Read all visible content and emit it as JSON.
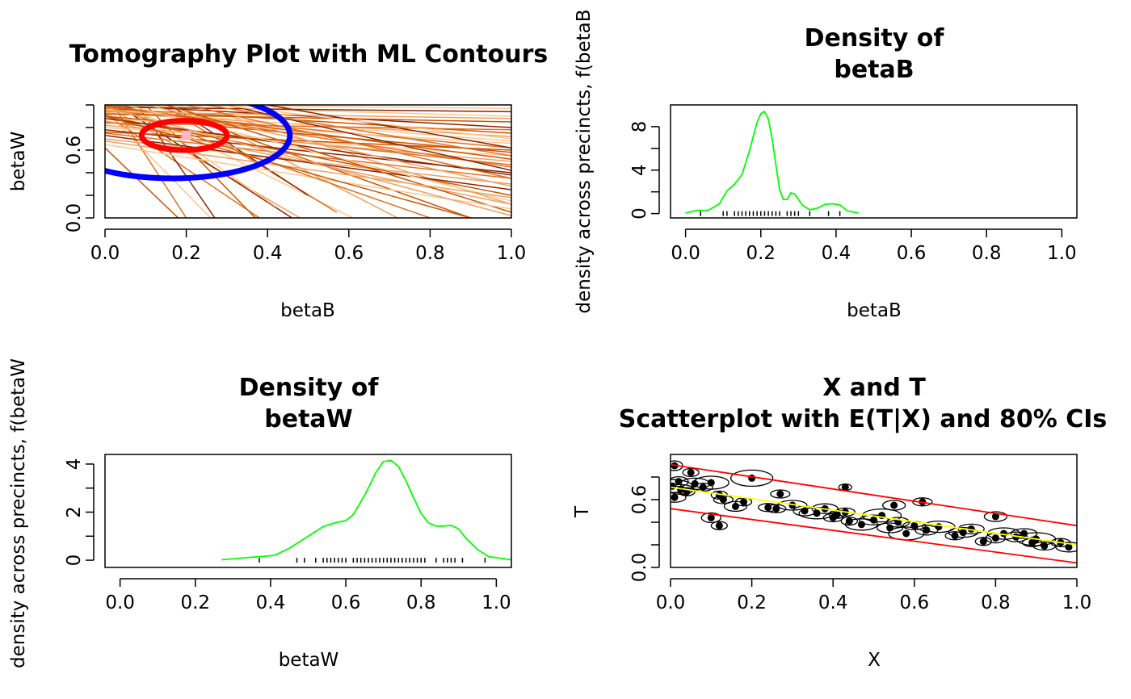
{
  "chart_data": [
    {
      "id": "tomography",
      "type": "line",
      "title": "Tomography Plot with ML Contours",
      "xlabel": "betaB",
      "ylabel": "betaW",
      "xlim": [
        0,
        1
      ],
      "ylim": [
        0,
        1
      ],
      "xticks": [
        "0.0",
        "0.2",
        "0.4",
        "0.6",
        "0.8",
        "1.0"
      ],
      "yticks": [
        "0.0",
        "0.6"
      ],
      "point_estimate": {
        "x": 0.2,
        "y": 0.73,
        "color": "#ffb6c1"
      },
      "contours": [
        {
          "level": "inner",
          "cx": 0.195,
          "cy": 0.73,
          "rx": 0.105,
          "ry": 0.13,
          "color": "#ff0000"
        },
        {
          "level": "outer",
          "cx": 0.165,
          "cy": 0.73,
          "rx": 0.29,
          "ry": 0.38,
          "color": "#0000ff"
        }
      ],
      "line_colors": [
        "#cc5500",
        "#e07020",
        "#f0a060",
        "#fcc890",
        "#8b2500"
      ],
      "lines": [
        [
          0,
          0.62,
          0.18,
          0
        ],
        [
          0,
          0.92,
          0.38,
          0
        ],
        [
          0,
          1,
          0.48,
          0
        ],
        [
          0.05,
          1,
          0.61,
          0
        ],
        [
          0.08,
          1,
          0.27,
          0
        ],
        [
          0.1,
          1,
          0.37,
          0
        ],
        [
          0.14,
          1,
          0.57,
          0.05
        ],
        [
          0.18,
          1,
          0.72,
          0
        ],
        [
          0,
          0.95,
          0.26,
          0
        ],
        [
          0.03,
          1,
          0.46,
          0
        ],
        [
          0.12,
          1,
          0.9,
          0
        ],
        [
          0.02,
          1,
          0.2,
          0
        ],
        [
          0.22,
          1,
          1,
          0.12
        ],
        [
          0.06,
          1,
          0.42,
          0.1
        ],
        [
          0.16,
          1,
          0.5,
          0.2
        ],
        [
          0,
          0.9,
          1,
          0.58
        ],
        [
          0,
          0.95,
          1,
          0.62
        ],
        [
          0,
          0.93,
          1,
          0.72
        ],
        [
          0,
          0.88,
          1,
          0.66
        ],
        [
          0,
          1,
          1,
          0.8
        ],
        [
          0,
          0.97,
          1,
          0.75
        ],
        [
          0,
          0.85,
          1,
          0.47
        ],
        [
          0,
          0.82,
          1,
          0.5
        ],
        [
          0,
          0.8,
          1,
          0.55
        ],
        [
          0,
          0.78,
          1,
          0.4
        ],
        [
          0,
          0.92,
          1,
          0.85
        ],
        [
          0,
          0.75,
          1,
          0.35
        ],
        [
          0,
          0.7,
          1,
          0.3
        ],
        [
          0,
          1,
          1,
          0.9
        ],
        [
          0,
          0.98,
          1,
          0.94
        ],
        [
          0,
          0.9,
          1,
          0.2
        ],
        [
          0,
          1,
          1,
          0.45
        ],
        [
          0,
          0.86,
          1,
          0.12
        ],
        [
          0,
          0.96,
          1,
          0.68
        ],
        [
          0,
          0.73,
          1,
          0.25
        ],
        [
          0,
          0.99,
          1,
          0.52
        ],
        [
          0,
          0.84,
          1,
          0.78
        ],
        [
          0,
          0.94,
          1,
          0.88
        ],
        [
          0,
          1,
          1,
          0.97
        ],
        [
          0,
          0.88,
          1,
          0.38
        ],
        [
          0,
          0.76,
          1,
          0.6
        ],
        [
          0.2,
          1,
          1,
          0.35
        ],
        [
          0.1,
          1,
          1,
          0.28
        ],
        [
          0.05,
          1,
          1,
          0.15
        ],
        [
          0.3,
          1,
          1,
          0.42
        ],
        [
          0.15,
          1,
          1,
          0.05
        ],
        [
          0.25,
          1,
          1,
          0.55
        ],
        [
          0,
          0.68,
          1,
          0.18
        ],
        [
          0,
          0.65,
          1,
          0.08
        ],
        [
          0.4,
          1,
          1,
          0.62
        ],
        [
          0,
          0.9,
          0.9,
          0
        ],
        [
          0,
          1,
          0.8,
          0
        ],
        [
          0,
          0.98,
          1,
          0.02
        ],
        [
          0.28,
          1,
          1,
          0.7
        ]
      ]
    },
    {
      "id": "density-betaB",
      "type": "line",
      "title_lines": [
        "Density of",
        "betaB"
      ],
      "xlabel": "betaB",
      "ylabel": "density across precincts, f(betaB",
      "xlim": [
        -0.04,
        1.04
      ],
      "ylim": [
        -0.4,
        10
      ],
      "xticks": [
        "0.0",
        "0.2",
        "0.4",
        "0.6",
        "0.8",
        "1.0"
      ],
      "yticks": [
        "0",
        "4",
        "8"
      ],
      "color": "#00ff00",
      "x": [
        0,
        0.03,
        0.06,
        0.09,
        0.11,
        0.13,
        0.15,
        0.17,
        0.19,
        0.2,
        0.21,
        0.22,
        0.23,
        0.24,
        0.25,
        0.26,
        0.27,
        0.28,
        0.29,
        0.31,
        0.33,
        0.35,
        0.37,
        0.39,
        0.41,
        0.43,
        0.46
      ],
      "y": [
        0.05,
        0.3,
        0.3,
        0.9,
        2.1,
        2.7,
        3.6,
        5.8,
        8.4,
        9.2,
        9.4,
        8.7,
        6.9,
        4.5,
        2.2,
        1.3,
        1.3,
        1.9,
        1.8,
        0.8,
        0.35,
        0.5,
        0.85,
        0.9,
        0.8,
        0.25,
        0.05
      ],
      "rug": [
        0.04,
        0.1,
        0.11,
        0.13,
        0.14,
        0.15,
        0.16,
        0.17,
        0.18,
        0.19,
        0.2,
        0.21,
        0.22,
        0.23,
        0.24,
        0.25,
        0.27,
        0.28,
        0.29,
        0.3,
        0.33,
        0.38,
        0.41
      ]
    },
    {
      "id": "density-betaW",
      "type": "line",
      "title_lines": [
        "Density of",
        "betaW"
      ],
      "xlabel": "betaW",
      "ylabel": "density across precincts, f(betaW",
      "xlim": [
        -0.04,
        1.04
      ],
      "ylim": [
        -0.3,
        4.4
      ],
      "xticks": [
        "0.0",
        "0.2",
        "0.4",
        "0.6",
        "0.8",
        "1.0"
      ],
      "yticks": [
        "0",
        "2",
        "4"
      ],
      "color": "#00ff00",
      "x": [
        0.27,
        0.33,
        0.37,
        0.41,
        0.45,
        0.5,
        0.54,
        0.57,
        0.6,
        0.62,
        0.65,
        0.68,
        0.7,
        0.72,
        0.74,
        0.76,
        0.78,
        0.8,
        0.82,
        0.84,
        0.86,
        0.88,
        0.9,
        0.92,
        0.95,
        0.98,
        1.04
      ],
      "y": [
        0.02,
        0.1,
        0.15,
        0.2,
        0.5,
        1,
        1.4,
        1.55,
        1.65,
        1.9,
        2.7,
        3.65,
        4.1,
        4.15,
        3.9,
        3.3,
        2.6,
        1.95,
        1.55,
        1.42,
        1.42,
        1.45,
        1.3,
        0.9,
        0.45,
        0.15,
        0.02
      ],
      "rug": [
        0.37,
        0.47,
        0.49,
        0.52,
        0.54,
        0.55,
        0.56,
        0.57,
        0.58,
        0.59,
        0.6,
        0.62,
        0.63,
        0.64,
        0.65,
        0.66,
        0.67,
        0.68,
        0.69,
        0.7,
        0.71,
        0.72,
        0.73,
        0.74,
        0.75,
        0.76,
        0.77,
        0.78,
        0.79,
        0.8,
        0.81,
        0.84,
        0.86,
        0.87,
        0.88,
        0.89,
        0.91,
        0.97
      ]
    },
    {
      "id": "scatter-XT",
      "type": "scatter",
      "title_lines": [
        "X and T",
        "Scatterplot with E(T|X) and 80% CIs"
      ],
      "xlabel": "X",
      "ylabel": "T",
      "xlim": [
        0,
        1
      ],
      "ylim": [
        0,
        1
      ],
      "xticks": [
        "0.0",
        "0.2",
        "0.4",
        "0.6",
        "0.8",
        "1.0"
      ],
      "yticks": [
        "0.0",
        "0.6"
      ],
      "expected_line": {
        "x": [
          0,
          1
        ],
        "y": [
          0.71,
          0.2
        ],
        "color": "#ffff00"
      },
      "ci_lines": [
        {
          "x": [
            0,
            1
          ],
          "y": [
            0.91,
            0.37
          ],
          "color": "#ff0000"
        },
        {
          "x": [
            0,
            1
          ],
          "y": [
            0.52,
            0.04
          ],
          "color": "#ff0000"
        }
      ],
      "points": [
        [
          0.005,
          0.72
        ],
        [
          0.01,
          0.62
        ],
        [
          0.02,
          0.76
        ],
        [
          0.025,
          0.69
        ],
        [
          0.04,
          0.67
        ],
        [
          0.06,
          0.74
        ],
        [
          0.08,
          0.71
        ],
        [
          0.1,
          0.75
        ],
        [
          0.12,
          0.64
        ],
        [
          0.13,
          0.6
        ],
        [
          0.16,
          0.54
        ],
        [
          0.18,
          0.58
        ],
        [
          0.2,
          0.79
        ],
        [
          0.24,
          0.53
        ],
        [
          0.27,
          0.65
        ],
        [
          0.3,
          0.55
        ],
        [
          0.33,
          0.5
        ],
        [
          0.36,
          0.48
        ],
        [
          0.38,
          0.52
        ],
        [
          0.4,
          0.44
        ],
        [
          0.41,
          0.47
        ],
        [
          0.43,
          0.49
        ],
        [
          0.44,
          0.41
        ],
        [
          0.47,
          0.38
        ],
        [
          0.5,
          0.42
        ],
        [
          0.52,
          0.46
        ],
        [
          0.54,
          0.35
        ],
        [
          0.56,
          0.4
        ],
        [
          0.58,
          0.3
        ],
        [
          0.6,
          0.37
        ],
        [
          0.63,
          0.33
        ],
        [
          0.66,
          0.36
        ],
        [
          0.7,
          0.28
        ],
        [
          0.72,
          0.31
        ],
        [
          0.74,
          0.34
        ],
        [
          0.77,
          0.23
        ],
        [
          0.8,
          0.26
        ],
        [
          0.82,
          0.3
        ],
        [
          0.85,
          0.27
        ],
        [
          0.87,
          0.3
        ],
        [
          0.89,
          0.22
        ],
        [
          0.9,
          0.25
        ],
        [
          0.92,
          0.19
        ],
        [
          0.96,
          0.22
        ],
        [
          0.98,
          0.18
        ],
        [
          0.1,
          0.44
        ],
        [
          0.12,
          0.37
        ],
        [
          0.26,
          0.52
        ],
        [
          0.43,
          0.71
        ],
        [
          0.55,
          0.55
        ],
        [
          0.62,
          0.58
        ],
        [
          0.8,
          0.45
        ],
        [
          0.05,
          0.84
        ],
        [
          0.01,
          0.9
        ]
      ],
      "ellipse_r": [
        [
          24,
          8
        ],
        [
          14,
          6
        ],
        [
          12,
          6
        ],
        [
          16,
          6
        ],
        [
          10,
          5
        ],
        [
          18,
          7
        ],
        [
          12,
          5
        ],
        [
          22,
          8
        ],
        [
          10,
          5
        ],
        [
          12,
          5
        ],
        [
          14,
          6
        ],
        [
          10,
          5
        ],
        [
          26,
          10
        ],
        [
          12,
          5
        ],
        [
          12,
          5
        ],
        [
          18,
          6
        ],
        [
          14,
          6
        ],
        [
          22,
          7
        ],
        [
          16,
          6
        ],
        [
          12,
          5
        ],
        [
          10,
          5
        ],
        [
          12,
          5
        ],
        [
          10,
          5
        ],
        [
          20,
          7
        ],
        [
          18,
          6
        ],
        [
          24,
          8
        ],
        [
          16,
          6
        ],
        [
          14,
          6
        ],
        [
          22,
          8
        ],
        [
          14,
          5
        ],
        [
          14,
          6
        ],
        [
          20,
          7
        ],
        [
          12,
          5
        ],
        [
          18,
          6
        ],
        [
          16,
          6
        ],
        [
          10,
          5
        ],
        [
          12,
          6
        ],
        [
          20,
          7
        ],
        [
          14,
          6
        ],
        [
          16,
          6
        ],
        [
          12,
          5
        ],
        [
          24,
          8
        ],
        [
          14,
          5
        ],
        [
          12,
          5
        ],
        [
          16,
          6
        ],
        [
          12,
          6
        ],
        [
          10,
          5
        ],
        [
          12,
          5
        ],
        [
          8,
          4
        ],
        [
          14,
          6
        ],
        [
          12,
          5
        ],
        [
          14,
          6
        ],
        [
          10,
          5
        ],
        [
          10,
          6
        ]
      ]
    }
  ]
}
